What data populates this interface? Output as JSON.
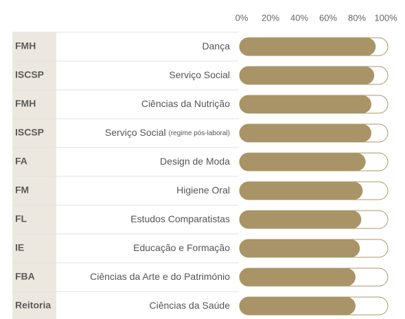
{
  "chart_data": {
    "type": "hbar",
    "groups": [
      "FMH",
      "ISCSP",
      "FMH",
      "ISCSP",
      "FA",
      "FM",
      "FL",
      "IE",
      "FBA",
      "Reitoria"
    ],
    "categories": [
      "Dança",
      "Serviço Social",
      "Ciências da Nutrição",
      "Serviço Social",
      "Design de Moda",
      "Higiene Oral",
      "Estudos Comparatistas",
      "Educação e Formação",
      "Ciências da Arte e do Património",
      "Ciências da Saúde"
    ],
    "category_notes": [
      null,
      null,
      null,
      "(regime pós-laboral)",
      null,
      null,
      null,
      null,
      null,
      null
    ],
    "values": [
      93,
      92,
      90,
      90,
      86,
      84,
      83,
      82,
      79,
      79
    ],
    "color": "#a89466",
    "xlim": [
      0,
      100
    ],
    "xticks": [
      {
        "value": 0,
        "label": "0%"
      },
      {
        "value": 20,
        "label": "20%"
      },
      {
        "value": 40,
        "label": "40%"
      },
      {
        "value": 60,
        "label": "60%"
      },
      {
        "value": 80,
        "label": "80%"
      },
      {
        "value": 100,
        "label": "100%"
      }
    ]
  }
}
